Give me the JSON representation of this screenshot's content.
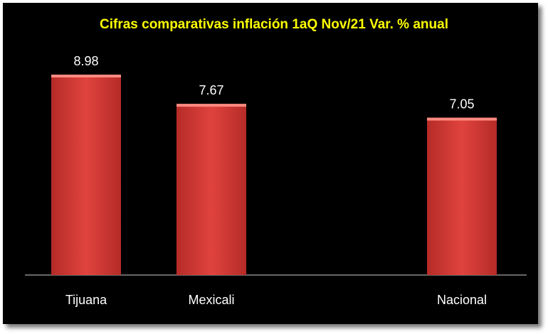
{
  "chart_data": {
    "type": "bar",
    "title": "Cifras comparativas inflación 1aQ Nov/21 Var. % anual",
    "categories": [
      "Tijuana",
      "Mexicali",
      "",
      "Nacional"
    ],
    "values": [
      8.98,
      7.67,
      null,
      7.05
    ],
    "value_labels": [
      "8.98",
      "7.67",
      "",
      "7.05"
    ],
    "xlabel": "",
    "ylabel": "",
    "ylim": [
      0,
      9
    ],
    "grid": false,
    "legend": "none",
    "colors": {
      "background": "#000000",
      "bar": "#e0433e",
      "bar_top": "#ff8a80",
      "bar_dark": "#b52b27",
      "title": "#ffff00",
      "text": "#ffffff",
      "axis": "#d0d0d0"
    }
  }
}
